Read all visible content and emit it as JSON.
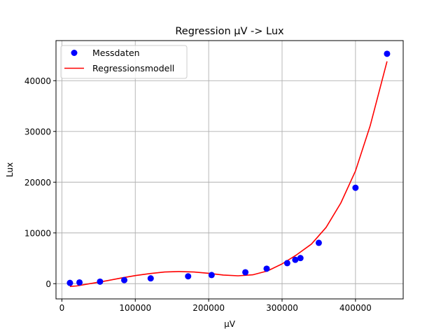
{
  "chart_data": {
    "type": "scatter",
    "title": "Regression µV -> Lux",
    "xlabel": "µV",
    "ylabel": "Lux",
    "xlim": [
      -8000,
      465000
    ],
    "ylim": [
      -3000,
      47900
    ],
    "grid": true,
    "xticks": [
      0,
      100000,
      200000,
      300000,
      400000
    ],
    "xtick_labels": [
      "0",
      "100000",
      "200000",
      "300000",
      "400000"
    ],
    "yticks": [
      0,
      10000,
      20000,
      30000,
      40000
    ],
    "ytick_labels": [
      "0",
      "10000",
      "20000",
      "30000",
      "40000"
    ],
    "legend_position": "top-left",
    "series": [
      {
        "name": "Messdaten",
        "kind": "scatter",
        "color": "#0000ff",
        "x": [
          11000,
          24000,
          52000,
          85000,
          121000,
          172000,
          204000,
          250000,
          279000,
          307000,
          318000,
          325000,
          350000,
          400000,
          443000
        ],
        "y": [
          150,
          250,
          400,
          700,
          1050,
          1450,
          1700,
          2250,
          2950,
          4050,
          4700,
          5050,
          8050,
          18900,
          45300
        ]
      },
      {
        "name": "Regressionsmodell",
        "kind": "line",
        "color": "#ff0000",
        "x": [
          11000,
          20000,
          40000,
          60000,
          80000,
          100000,
          120000,
          140000,
          160000,
          180000,
          200000,
          220000,
          240000,
          260000,
          280000,
          300000,
          320000,
          340000,
          360000,
          380000,
          400000,
          420000,
          443000
        ],
        "y": [
          -550,
          -450,
          50,
          550,
          1100,
          1600,
          2000,
          2300,
          2400,
          2300,
          2050,
          1700,
          1550,
          1750,
          2500,
          3900,
          5700,
          7800,
          11100,
          15900,
          22200,
          31100,
          43800
        ]
      }
    ]
  }
}
